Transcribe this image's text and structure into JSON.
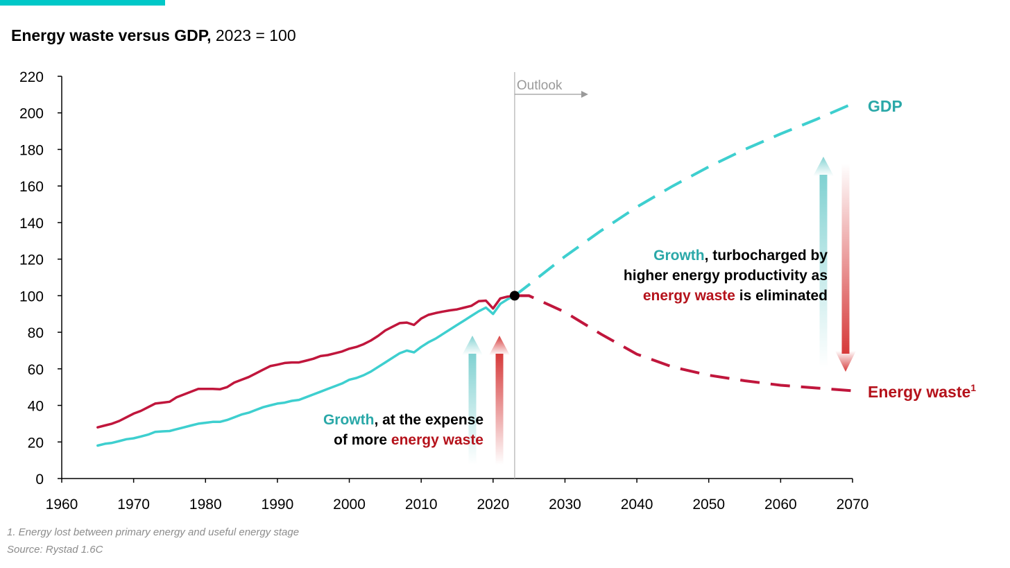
{
  "header": {
    "title_bold": "Energy waste versus GDP,",
    "title_regular": " 2023 = 100"
  },
  "colors": {
    "accent": "#00c8c8",
    "gdp": "#3ecfcf",
    "gdp_text": "#2aa8a8",
    "waste": "#c0163c",
    "waste_text": "#b5121b",
    "arrow_red": "#d63a3a",
    "outlook": "#9a9a9a",
    "axis": "#000000"
  },
  "annotations": {
    "outlook_label": "Outlook",
    "gdp_label": "GDP",
    "waste_label": "Energy waste",
    "waste_label_sup": "1",
    "left_note": {
      "line1_colored": "Growth",
      "line1_rest": ", at the expense",
      "line2_start": "of more ",
      "line2_colored": "energy waste"
    },
    "right_note": {
      "line1_colored": "Growth",
      "line1_rest": ", turbocharged by",
      "line2": "higher energy productivity as",
      "line3_colored": "energy waste",
      "line3_rest": " is eliminated"
    }
  },
  "footer": {
    "footnote": "1. Energy lost between primary energy and useful energy stage",
    "source": "Source: Rystad 1.6C"
  },
  "chart_data": {
    "type": "line",
    "title": "Energy waste versus GDP, 2023 = 100",
    "xlim": [
      1960,
      2070
    ],
    "ylim": [
      0,
      220
    ],
    "x_ticks": [
      1960,
      1970,
      1980,
      1990,
      2000,
      2010,
      2020,
      2030,
      2040,
      2050,
      2060,
      2070
    ],
    "y_ticks": [
      0,
      20,
      40,
      60,
      80,
      100,
      120,
      140,
      160,
      180,
      200,
      220
    ],
    "outlook_start": 2023,
    "reference_point": {
      "x": 2023,
      "y": 100
    },
    "series": [
      {
        "name": "GDP",
        "historical": [
          [
            1965,
            18
          ],
          [
            1966,
            19
          ],
          [
            1967,
            19.5
          ],
          [
            1968,
            20.5
          ],
          [
            1969,
            21.5
          ],
          [
            1970,
            22
          ],
          [
            1971,
            23
          ],
          [
            1972,
            24
          ],
          [
            1973,
            25.5
          ],
          [
            1974,
            25.8
          ],
          [
            1975,
            26
          ],
          [
            1976,
            27
          ],
          [
            1977,
            28
          ],
          [
            1978,
            29
          ],
          [
            1979,
            30
          ],
          [
            1980,
            30.5
          ],
          [
            1981,
            31
          ],
          [
            1982,
            31
          ],
          [
            1983,
            32
          ],
          [
            1984,
            33.5
          ],
          [
            1985,
            35
          ],
          [
            1986,
            36
          ],
          [
            1987,
            37.5
          ],
          [
            1988,
            39
          ],
          [
            1989,
            40
          ],
          [
            1990,
            41
          ],
          [
            1991,
            41.5
          ],
          [
            1992,
            42.5
          ],
          [
            1993,
            43
          ],
          [
            1994,
            44.5
          ],
          [
            1995,
            46
          ],
          [
            1996,
            47.5
          ],
          [
            1997,
            49
          ],
          [
            1998,
            50.5
          ],
          [
            1999,
            52
          ],
          [
            2000,
            54
          ],
          [
            2001,
            55
          ],
          [
            2002,
            56.5
          ],
          [
            2003,
            58.5
          ],
          [
            2004,
            61
          ],
          [
            2005,
            63.5
          ],
          [
            2006,
            66
          ],
          [
            2007,
            68.5
          ],
          [
            2008,
            70
          ],
          [
            2009,
            69
          ],
          [
            2010,
            72
          ],
          [
            2011,
            74.5
          ],
          [
            2012,
            76.5
          ],
          [
            2013,
            79
          ],
          [
            2014,
            81.5
          ],
          [
            2015,
            84
          ],
          [
            2016,
            86.5
          ],
          [
            2017,
            89
          ],
          [
            2018,
            91.5
          ],
          [
            2019,
            93.5
          ],
          [
            2020,
            90
          ],
          [
            2021,
            95.5
          ],
          [
            2022,
            98
          ],
          [
            2023,
            100
          ]
        ],
        "outlook": [
          [
            2023,
            100
          ],
          [
            2025,
            106
          ],
          [
            2030,
            121.5
          ],
          [
            2035,
            135.5
          ],
          [
            2040,
            148.5
          ],
          [
            2045,
            160
          ],
          [
            2050,
            170.5
          ],
          [
            2055,
            180
          ],
          [
            2060,
            188.5
          ],
          [
            2065,
            196.5
          ],
          [
            2070,
            205
          ]
        ]
      },
      {
        "name": "Energy waste",
        "historical": [
          [
            1965,
            28
          ],
          [
            1966,
            29
          ],
          [
            1967,
            30
          ],
          [
            1968,
            31.5
          ],
          [
            1969,
            33.5
          ],
          [
            1970,
            35.5
          ],
          [
            1971,
            37
          ],
          [
            1972,
            39
          ],
          [
            1973,
            41
          ],
          [
            1974,
            41.5
          ],
          [
            1975,
            42
          ],
          [
            1976,
            44.5
          ],
          [
            1977,
            46
          ],
          [
            1978,
            47.5
          ],
          [
            1979,
            49
          ],
          [
            1980,
            49
          ],
          [
            1981,
            49
          ],
          [
            1982,
            48.8
          ],
          [
            1983,
            50
          ],
          [
            1984,
            52.5
          ],
          [
            1985,
            54
          ],
          [
            1986,
            55.5
          ],
          [
            1987,
            57.5
          ],
          [
            1988,
            59.5
          ],
          [
            1989,
            61.5
          ],
          [
            1990,
            62.3
          ],
          [
            1991,
            63.2
          ],
          [
            1992,
            63.5
          ],
          [
            1993,
            63.5
          ],
          [
            1994,
            64.5
          ],
          [
            1995,
            65.5
          ],
          [
            1996,
            67
          ],
          [
            1997,
            67.5
          ],
          [
            1998,
            68.5
          ],
          [
            1999,
            69.5
          ],
          [
            2000,
            71
          ],
          [
            2001,
            72
          ],
          [
            2002,
            73.5
          ],
          [
            2003,
            75.5
          ],
          [
            2004,
            78
          ],
          [
            2005,
            81
          ],
          [
            2006,
            83
          ],
          [
            2007,
            85
          ],
          [
            2008,
            85.3
          ],
          [
            2009,
            84
          ],
          [
            2010,
            87.5
          ],
          [
            2011,
            89.5
          ],
          [
            2012,
            90.5
          ],
          [
            2013,
            91.3
          ],
          [
            2014,
            92
          ],
          [
            2015,
            92.5
          ],
          [
            2016,
            93.5
          ],
          [
            2017,
            94.5
          ],
          [
            2018,
            97
          ],
          [
            2019,
            97.3
          ],
          [
            2020,
            93
          ],
          [
            2021,
            98.5
          ],
          [
            2022,
            99.5
          ],
          [
            2023,
            100
          ]
        ],
        "outlook": [
          [
            2023,
            100
          ],
          [
            2025,
            100
          ],
          [
            2030,
            91
          ],
          [
            2035,
            79
          ],
          [
            2040,
            68
          ],
          [
            2045,
            61
          ],
          [
            2050,
            56.5
          ],
          [
            2055,
            53.5
          ],
          [
            2060,
            51
          ],
          [
            2065,
            49.5
          ],
          [
            2070,
            48
          ]
        ]
      }
    ]
  }
}
